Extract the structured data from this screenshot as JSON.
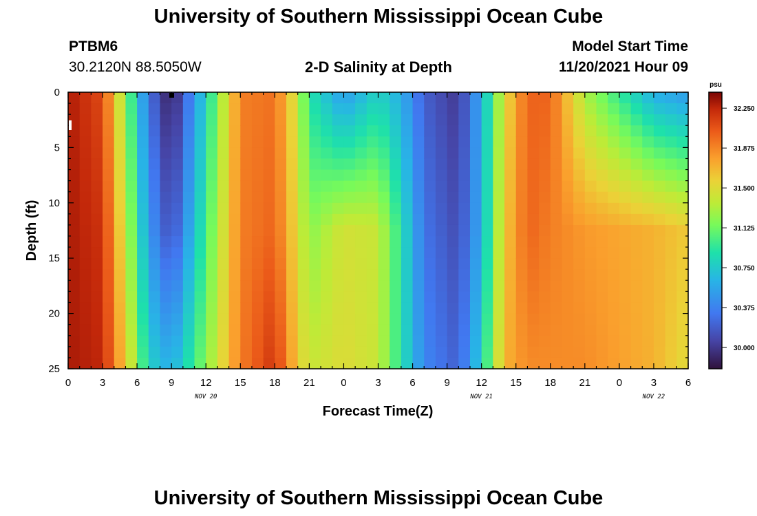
{
  "header": {
    "title": "University of Southern Mississippi Ocean Cube",
    "station_id": "PTBM6",
    "station_coords": "30.2120N  88.5050W",
    "plot_title": "2-D Salinity at Depth",
    "model_start_label": "Model Start Time",
    "model_start_value": "11/20/2021 Hour 09"
  },
  "footer": {
    "title": "University of Southern Mississippi Ocean Cube"
  },
  "chart_data": {
    "type": "heatmap",
    "title": "2-D Salinity at Depth",
    "xlabel": "Forecast Time(Z)",
    "ylabel": "Depth (ft)",
    "x_range_hours": [
      0,
      54
    ],
    "y_range_ft": [
      0,
      25
    ],
    "x_tick_labels": [
      "0",
      "3",
      "6",
      "9",
      "12",
      "15",
      "18",
      "21",
      "0",
      "3",
      "6",
      "9",
      "12",
      "15",
      "18",
      "21",
      "0",
      "3",
      "6"
    ],
    "y_tick_labels": [
      "0",
      "5",
      "10",
      "15",
      "20",
      "25"
    ],
    "date_labels": [
      {
        "text": "NOV 20",
        "hour": 12
      },
      {
        "text": "NOV 21",
        "hour": 36
      },
      {
        "text": "NOV 22",
        "hour": 51
      }
    ],
    "colorbar": {
      "unit": "psu",
      "min": 29.8,
      "max": 32.4,
      "tick_labels": [
        "32.250",
        "31.875",
        "31.500",
        "31.125",
        "30.750",
        "30.375",
        "30.000"
      ],
      "tick_values": [
        32.25,
        31.875,
        31.5,
        31.125,
        30.75,
        30.375,
        30.0
      ]
    },
    "grid": {
      "columns": 54,
      "rows": 25,
      "column_interval_hours": 1,
      "row_interval_ft": 1
    },
    "salinity_profile_psu": {
      "hours": [
        0,
        3,
        5,
        7,
        9,
        12,
        15,
        18,
        20,
        21,
        24,
        27,
        29,
        31,
        34,
        36,
        38,
        40,
        42,
        45,
        51,
        54
      ],
      "surface": [
        32.3,
        32.1,
        31.2,
        30.3,
        29.85,
        30.8,
        31.9,
        31.95,
        31.4,
        30.9,
        30.5,
        30.8,
        30.6,
        30.2,
        30.0,
        30.6,
        31.5,
        32.0,
        32.0,
        31.3,
        30.6,
        30.5
      ],
      "mid": [
        32.3,
        32.2,
        31.4,
        30.5,
        30.1,
        31.0,
        31.9,
        32.0,
        31.5,
        31.2,
        31.45,
        31.4,
        30.9,
        30.3,
        30.1,
        30.6,
        31.6,
        32.0,
        31.9,
        31.8,
        31.7,
        31.6
      ],
      "bottom": [
        32.3,
        32.25,
        31.6,
        30.8,
        30.6,
        31.2,
        31.9,
        32.2,
        31.6,
        31.4,
        31.5,
        31.4,
        30.9,
        30.4,
        30.2,
        30.8,
        31.7,
        31.85,
        31.85,
        31.85,
        31.7,
        31.5
      ]
    }
  }
}
